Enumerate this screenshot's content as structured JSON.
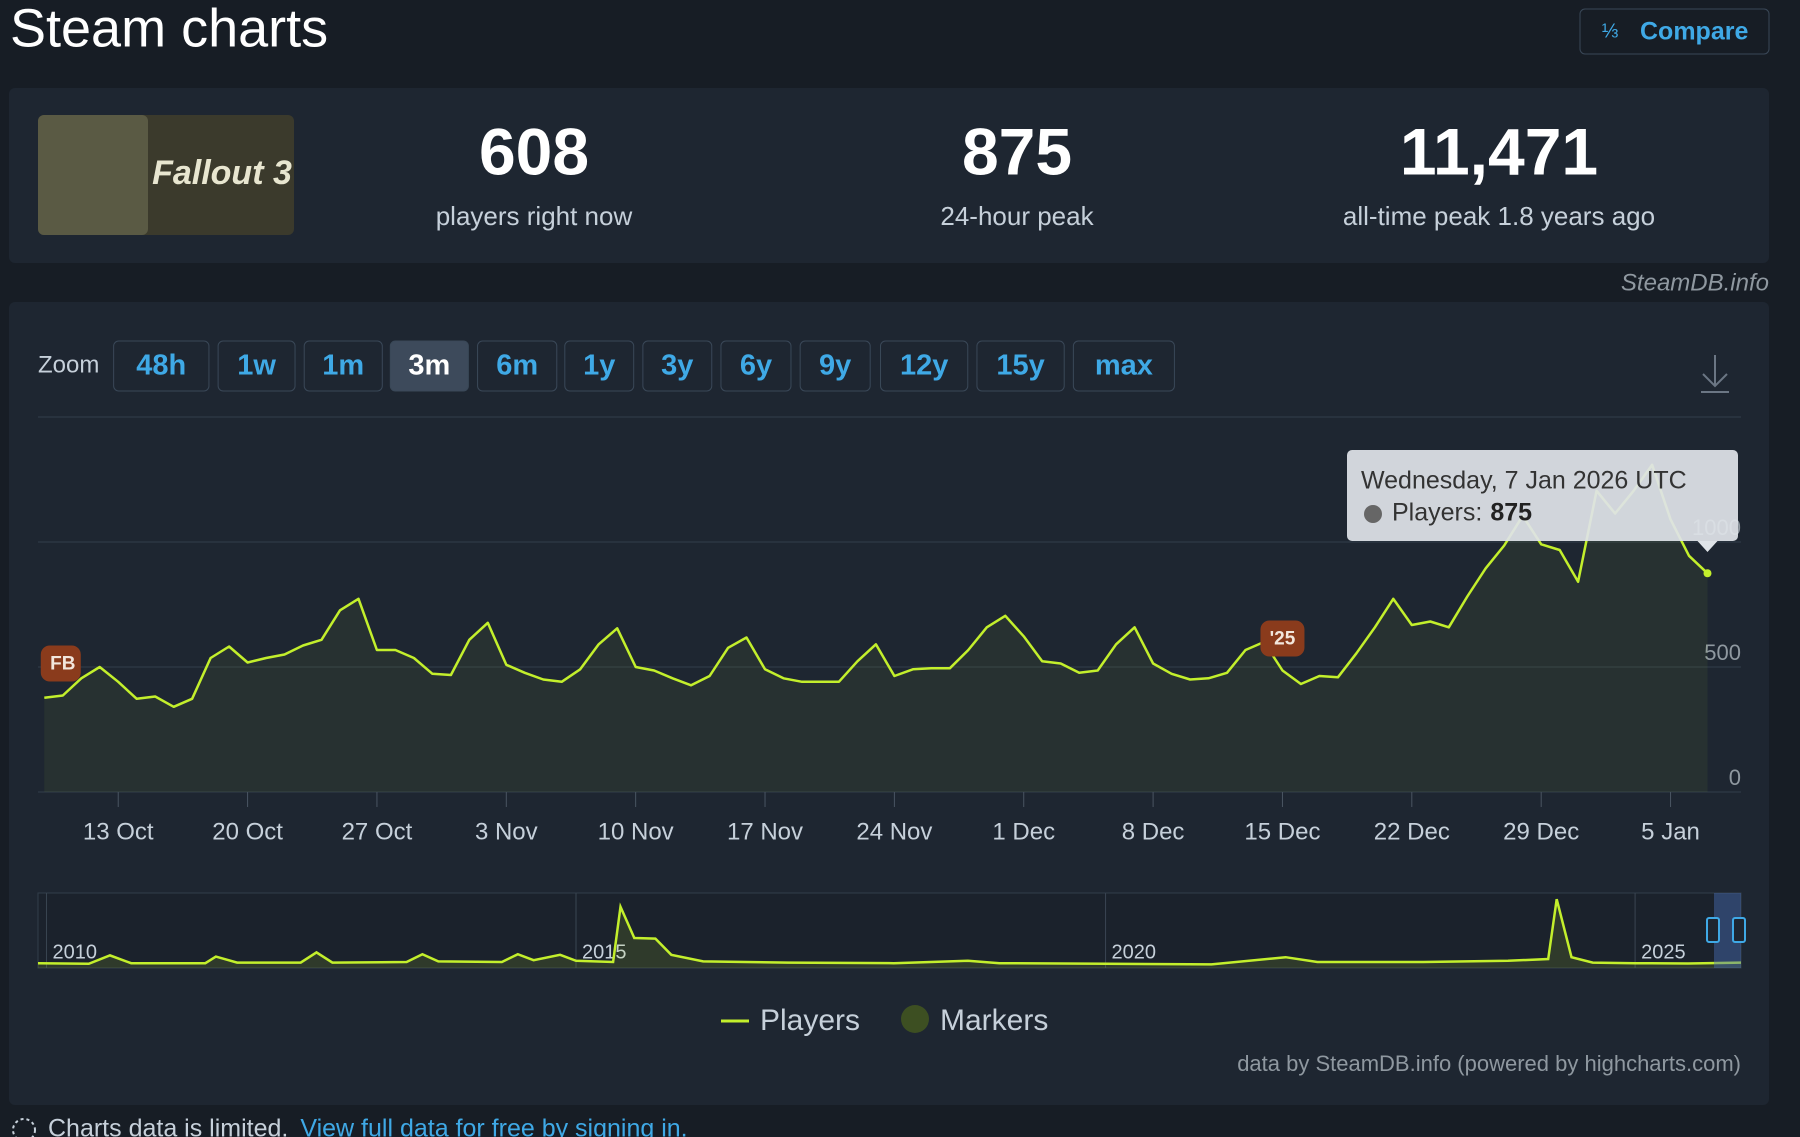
{
  "header": {
    "title": "Steam charts",
    "button": "Compare"
  },
  "game": {
    "image_text": "Fallout 3"
  },
  "stats": [
    {
      "value": "608",
      "label": "players right now"
    },
    {
      "value": "875",
      "label": "24-hour peak"
    },
    {
      "value": "11,471",
      "label": "all-time peak 1.8 years ago"
    }
  ],
  "source": "SteamDB.info",
  "zoom": {
    "label": "Zoom",
    "buttons": [
      "48h",
      "1w",
      "1m",
      "3m",
      "6m",
      "1y",
      "3y",
      "6y",
      "9y",
      "12y",
      "15y",
      "max"
    ],
    "active": "3m"
  },
  "chart_data": {
    "type": "line",
    "categories": [
      null,
      null,
      null,
      null,
      "13 Oct",
      null,
      null,
      null,
      null,
      null,
      null,
      "20 Oct",
      null,
      null,
      null,
      null,
      null,
      null,
      "27 Oct",
      null,
      null,
      null,
      null,
      null,
      null,
      "3 Nov",
      null,
      null,
      null,
      null,
      null,
      null,
      "10 Nov",
      null,
      null,
      null,
      null,
      null,
      null,
      "17 Nov",
      null,
      null,
      null,
      null,
      null,
      null,
      "24 Nov",
      null,
      null,
      null,
      null,
      null,
      null,
      "1 Dec",
      null,
      null,
      null,
      null,
      null,
      null,
      "8 Dec",
      null,
      null,
      null,
      null,
      null,
      null,
      "15 Dec",
      null,
      null,
      null,
      null,
      null,
      null,
      "22 Dec",
      null,
      null,
      null,
      null,
      null,
      null,
      "29 Dec",
      null,
      null,
      null,
      null,
      null,
      null,
      "5 Jan",
      null,
      null
    ],
    "series": [
      {
        "name": "Players",
        "color": "#c3ef2c",
        "values": [
          377,
          386,
          455,
          500,
          441,
          373,
          382,
          341,
          373,
          536,
          582,
          518,
          536,
          550,
          586,
          609,
          727,
          773,
          568,
          568,
          536,
          473,
          468,
          609,
          677,
          509,
          477,
          450,
          441,
          491,
          591,
          655,
          500,
          486,
          455,
          427,
          464,
          577,
          618,
          491,
          455,
          441,
          441,
          441,
          523,
          591,
          464,
          491,
          495,
          495,
          568,
          659,
          705,
          623,
          523,
          514,
          477,
          486,
          591,
          659,
          514,
          473,
          450,
          455,
          477,
          568,
          600,
          486,
          432,
          464,
          459,
          555,
          659,
          773,
          668,
          682,
          659,
          782,
          895,
          986,
          1105,
          991,
          968,
          841,
          1205,
          1114,
          1205,
          1309,
          1091,
          945,
          875
        ]
      }
    ],
    "ylim": [
      0,
      1500
    ],
    "yticks": [
      0,
      500,
      1000
    ],
    "grid": true,
    "annotations": {
      "name": "Markers",
      "color": "#3d4f22",
      "badge_color": "#8a3b1c",
      "items": [
        {
          "label": "FB",
          "index": 1
        },
        {
          "label": "'25",
          "index": 67
        }
      ]
    },
    "tooltip": {
      "title": "Wednesday, 7 Jan 2026 UTC",
      "label": "Players:",
      "index": 90
    },
    "navigator": {
      "x": [
        2009.92,
        2010.4,
        2010.6,
        2010.8,
        2011.5,
        2011.6,
        2011.8,
        2012.4,
        2012.55,
        2012.7,
        2013.4,
        2013.55,
        2013.7,
        2014.3,
        2014.45,
        2014.6,
        2014.85,
        2015.0,
        2015.35,
        2015.42,
        2015.55,
        2015.75,
        2015.9,
        2016.2,
        2017.0,
        2018.0,
        2018.7,
        2019.0,
        2020.0,
        2021.0,
        2021.7,
        2022.0,
        2023.0,
        2023.8,
        2024.18,
        2024.26,
        2024.4,
        2024.6,
        2025.0,
        2025.5,
        2026.0
      ],
      "values": [
        800,
        700,
        2100,
        800,
        800,
        1900,
        900,
        900,
        2600,
        900,
        1000,
        2300,
        1100,
        1000,
        2300,
        1300,
        2200,
        1200,
        1000,
        10200,
        5000,
        4900,
        2200,
        1100,
        900,
        800,
        1200,
        800,
        700,
        600,
        1800,
        1000,
        1000,
        1200,
        1500,
        11471,
        1800,
        900,
        800,
        750,
        900
      ],
      "xlim": [
        2009.92,
        2026.0
      ],
      "ylim": [
        0,
        12500
      ],
      "xticks": [
        2010,
        2015,
        2020,
        2025
      ]
    },
    "credits": "data by SteamDB.info (powered by highcharts.com)"
  },
  "footer": {
    "note": "Charts data is limited.",
    "link": "View full data for free by signing in."
  }
}
